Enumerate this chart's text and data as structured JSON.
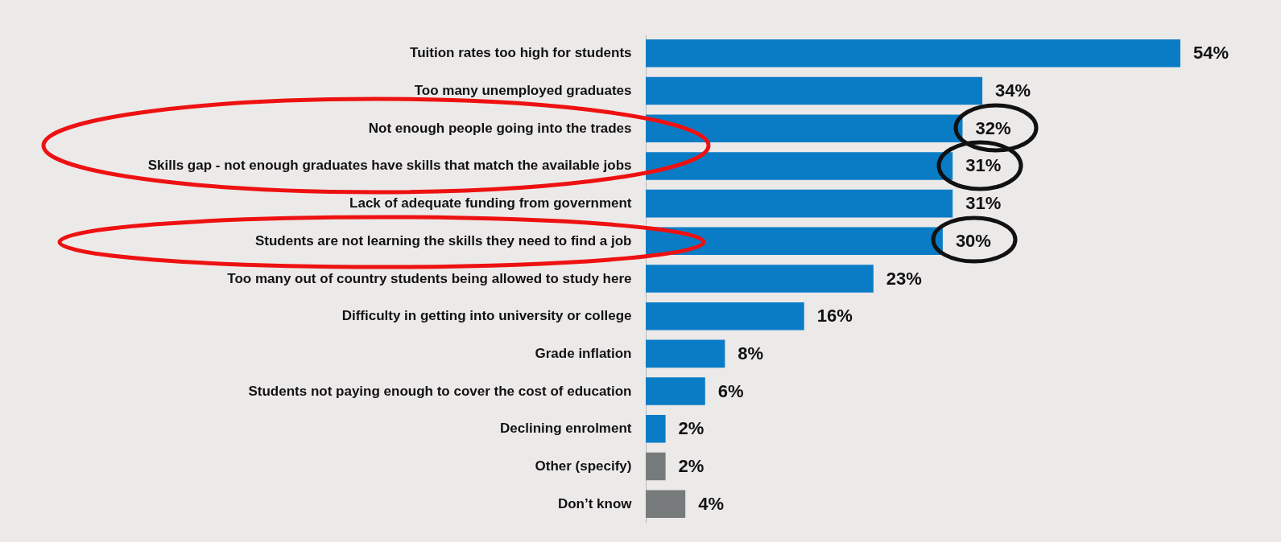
{
  "chart_data": {
    "type": "bar",
    "orientation": "horizontal",
    "value_labels": [
      "54%",
      "34%",
      "32%",
      "31%",
      "31%",
      "30%",
      "23%",
      "16%",
      "8%",
      "6%",
      "2%",
      "2%",
      "4%"
    ],
    "categories": [
      "Tuition rates too high for students",
      "Too many unemployed graduates",
      "Not enough people going into the trades",
      "Skills gap - not enough graduates have skills that match the available jobs",
      "Lack of adequate funding from government",
      "Students are not learning the skills they need to find a job",
      "Too many out of country students being allowed to study here",
      "Difficulty in getting into university or college",
      "Grade inflation",
      "Students not paying enough to cover the cost of education",
      "Declining enrolment",
      "Other (specify)",
      "Don’t know"
    ],
    "values": [
      54,
      34,
      32,
      31,
      31,
      30,
      23,
      16,
      8,
      6,
      2,
      2,
      4
    ],
    "colors": [
      "#0a7cc6",
      "#0a7cc6",
      "#0a7cc6",
      "#0a7cc6",
      "#0a7cc6",
      "#0a7cc6",
      "#0a7cc6",
      "#0a7cc6",
      "#0a7cc6",
      "#0a7cc6",
      "#0a7cc6",
      "#777b7b",
      "#777b7b"
    ]
  }
}
